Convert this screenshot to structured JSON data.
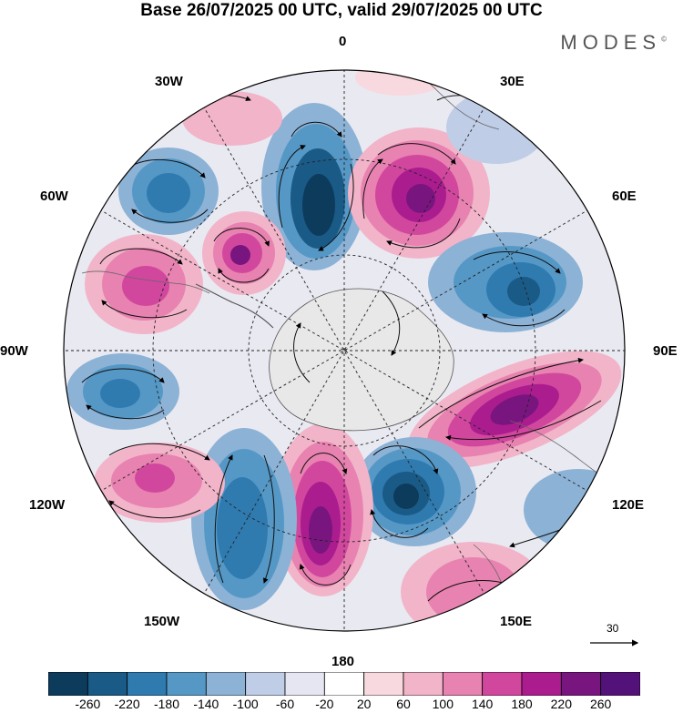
{
  "title": "Base 26/07/2025 00 UTC, valid 29/07/2025 00 UTC",
  "brand": "MODES",
  "brand_mark": "©",
  "longitude_labels": {
    "lon_0": "0",
    "lon_30e": "30E",
    "lon_60e": "60E",
    "lon_90e": "90E",
    "lon_120e": "120E",
    "lon_150e": "150E",
    "lon_180": "180",
    "lon_150w": "150W",
    "lon_120w": "120W",
    "lon_90w": "90W",
    "lon_60w": "60W",
    "lon_30w": "30W"
  },
  "reference_vector": {
    "label": "30"
  },
  "colorbar": {
    "labels": [
      "-260",
      "-220",
      "-180",
      "-140",
      "-100",
      "-60",
      "-20",
      "20",
      "60",
      "100",
      "140",
      "180",
      "220",
      "260"
    ],
    "colors": [
      "#0d3b5c",
      "#1a5a86",
      "#2f7bb0",
      "#5598c6",
      "#8cb2d6",
      "#c0cde6",
      "#e6e6f2",
      "#ffffff",
      "#f8d9df",
      "#f2b4c8",
      "#e882b0",
      "#d2479e",
      "#ab1d8f",
      "#79157f",
      "#53127a"
    ]
  },
  "map": {
    "projection": "south-polar-stereographic",
    "features": [
      "geopotential-anomaly-shading",
      "wind-streamlines",
      "coastlines",
      "lat-lon-grid"
    ],
    "anomaly_centers": [
      {
        "name": "neg-0-30w",
        "sign": "negative",
        "value": -240
      },
      {
        "name": "pos-15e-45e",
        "sign": "positive",
        "value": 250
      },
      {
        "name": "neg-60e-70e",
        "sign": "negative",
        "value": -180
      },
      {
        "name": "pos-95e-110e",
        "sign": "positive",
        "value": 240
      },
      {
        "name": "neg-140e-160e",
        "sign": "negative",
        "value": -240
      },
      {
        "name": "pos-160w-180",
        "sign": "positive",
        "value": 250
      },
      {
        "name": "neg-130w-150w",
        "sign": "negative",
        "value": -180
      },
      {
        "name": "pos-110w-120w",
        "sign": "positive",
        "value": 150
      },
      {
        "name": "neg-90w-100w",
        "sign": "negative",
        "value": -160
      },
      {
        "name": "pos-60w-70w",
        "sign": "positive",
        "value": 170
      },
      {
        "name": "neg-45w-60w",
        "sign": "negative",
        "value": -170
      },
      {
        "name": "pos-40w-near-pole",
        "sign": "positive",
        "value": 240
      },
      {
        "name": "pos-150e-coast",
        "sign": "positive",
        "value": 140
      }
    ]
  }
}
